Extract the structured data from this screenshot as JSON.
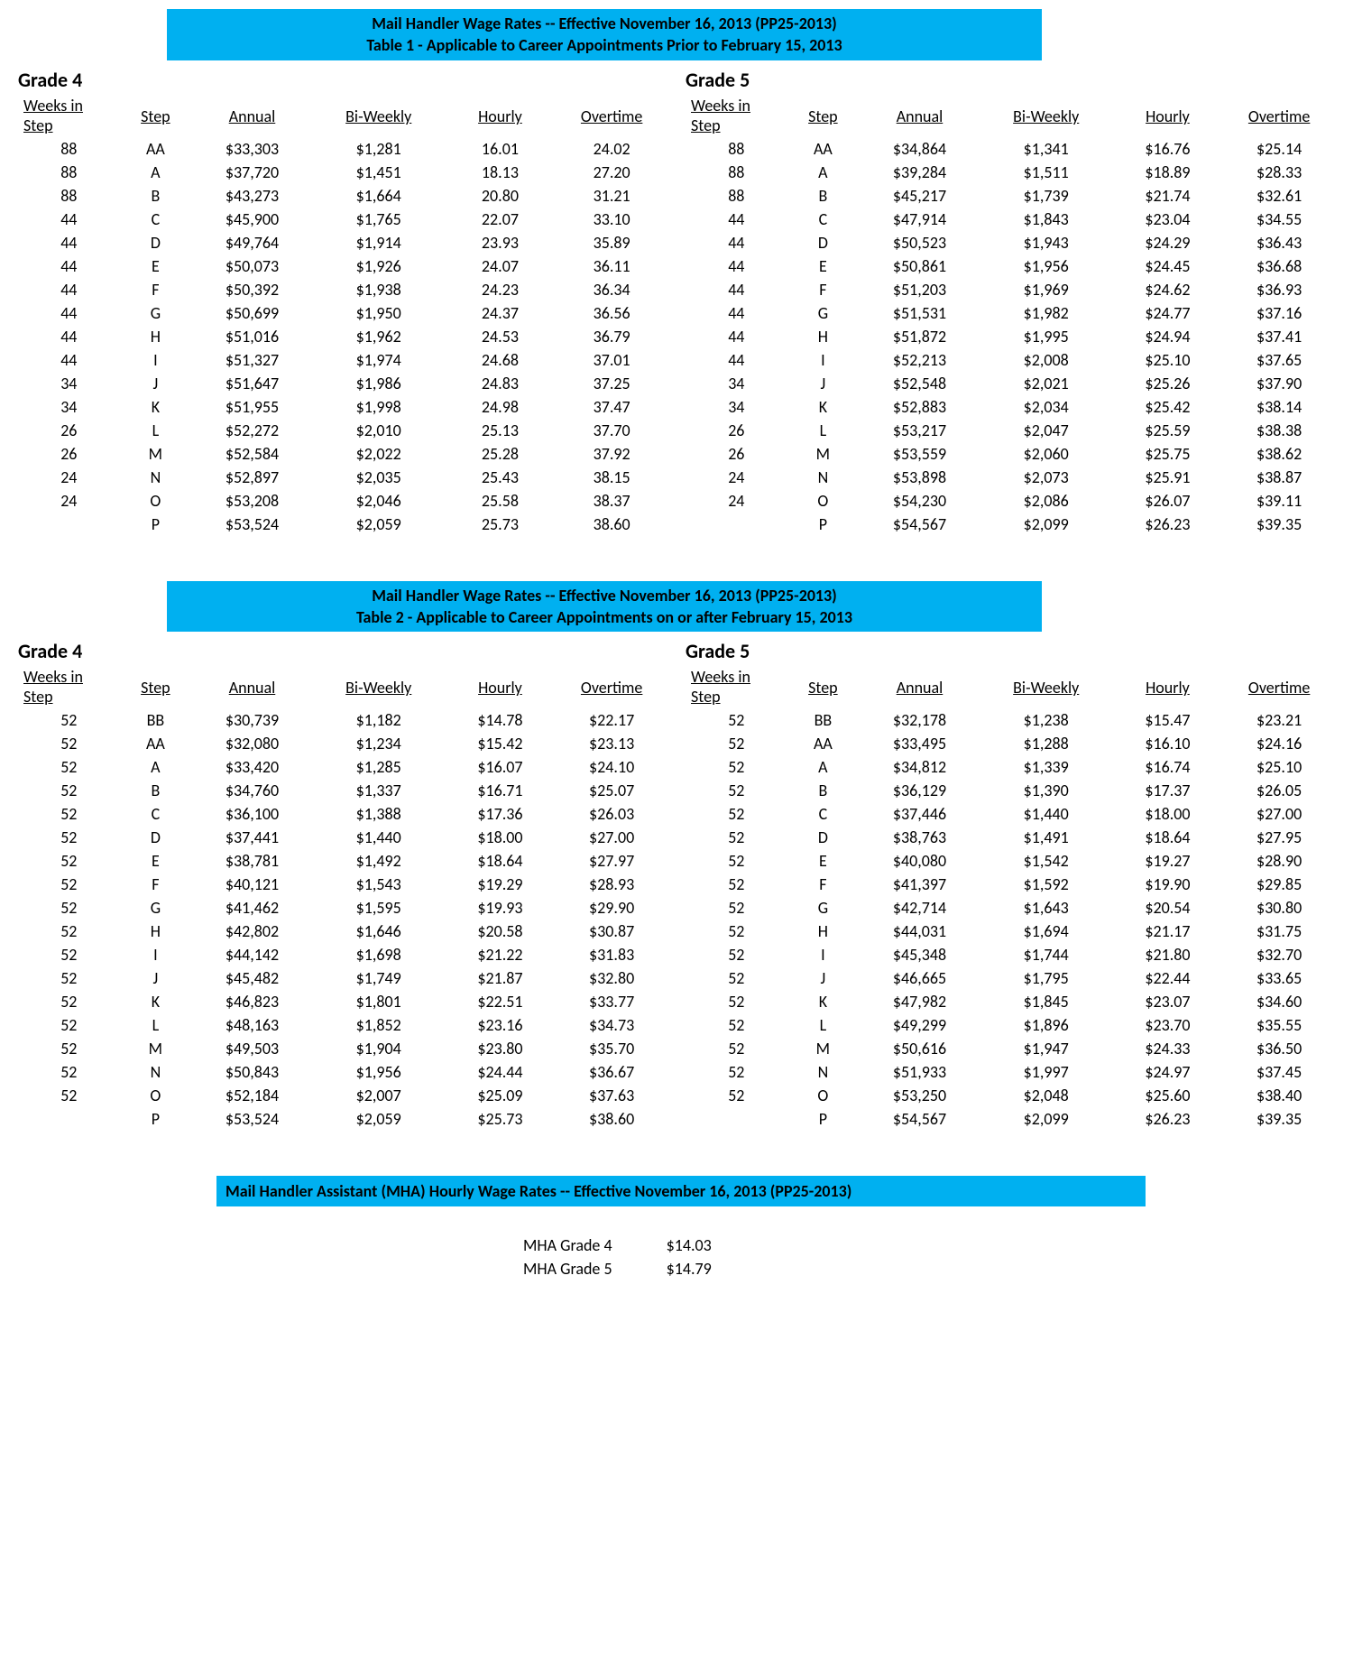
{
  "colors": {
    "banner_bg": "#00b0f0",
    "text": "#000000",
    "page_bg": "#ffffff"
  },
  "columns": [
    "Weeks in Step",
    "Step",
    "Annual",
    "Bi-Weekly",
    "Hourly",
    "Overtime"
  ],
  "table1": {
    "title_line1": "Mail Handler Wage Rates -- Effective November 16, 2013 (PP25-2013)",
    "title_line2": "Table 1 - Applicable to Career Appointments Prior to February 15, 2013",
    "grade4": {
      "label": "Grade 4",
      "rows": [
        {
          "weeks": "88",
          "step": "AA",
          "annual": "$33,303",
          "bi": "$1,281",
          "hr": "16.01",
          "ot": "24.02"
        },
        {
          "weeks": "88",
          "step": "A",
          "annual": "$37,720",
          "bi": "$1,451",
          "hr": "18.13",
          "ot": "27.20"
        },
        {
          "weeks": "88",
          "step": "B",
          "annual": "$43,273",
          "bi": "$1,664",
          "hr": "20.80",
          "ot": "31.21"
        },
        {
          "weeks": "44",
          "step": "C",
          "annual": "$45,900",
          "bi": "$1,765",
          "hr": "22.07",
          "ot": "33.10"
        },
        {
          "weeks": "44",
          "step": "D",
          "annual": "$49,764",
          "bi": "$1,914",
          "hr": "23.93",
          "ot": "35.89"
        },
        {
          "weeks": "44",
          "step": "E",
          "annual": "$50,073",
          "bi": "$1,926",
          "hr": "24.07",
          "ot": "36.11"
        },
        {
          "weeks": "44",
          "step": "F",
          "annual": "$50,392",
          "bi": "$1,938",
          "hr": "24.23",
          "ot": "36.34"
        },
        {
          "weeks": "44",
          "step": "G",
          "annual": "$50,699",
          "bi": "$1,950",
          "hr": "24.37",
          "ot": "36.56"
        },
        {
          "weeks": "44",
          "step": "H",
          "annual": "$51,016",
          "bi": "$1,962",
          "hr": "24.53",
          "ot": "36.79"
        },
        {
          "weeks": "44",
          "step": "I",
          "annual": "$51,327",
          "bi": "$1,974",
          "hr": "24.68",
          "ot": "37.01"
        },
        {
          "weeks": "34",
          "step": "J",
          "annual": "$51,647",
          "bi": "$1,986",
          "hr": "24.83",
          "ot": "37.25"
        },
        {
          "weeks": "34",
          "step": "K",
          "annual": "$51,955",
          "bi": "$1,998",
          "hr": "24.98",
          "ot": "37.47"
        },
        {
          "weeks": "26",
          "step": "L",
          "annual": "$52,272",
          "bi": "$2,010",
          "hr": "25.13",
          "ot": "37.70"
        },
        {
          "weeks": "26",
          "step": "M",
          "annual": "$52,584",
          "bi": "$2,022",
          "hr": "25.28",
          "ot": "37.92"
        },
        {
          "weeks": "24",
          "step": "N",
          "annual": "$52,897",
          "bi": "$2,035",
          "hr": "25.43",
          "ot": "38.15"
        },
        {
          "weeks": "24",
          "step": "O",
          "annual": "$53,208",
          "bi": "$2,046",
          "hr": "25.58",
          "ot": "38.37"
        },
        {
          "weeks": "",
          "step": "P",
          "annual": "$53,524",
          "bi": "$2,059",
          "hr": "25.73",
          "ot": "38.60"
        }
      ]
    },
    "grade5": {
      "label": "Grade 5",
      "rows": [
        {
          "weeks": "88",
          "step": "AA",
          "annual": "$34,864",
          "bi": "$1,341",
          "hr": "$16.76",
          "ot": "$25.14"
        },
        {
          "weeks": "88",
          "step": "A",
          "annual": "$39,284",
          "bi": "$1,511",
          "hr": "$18.89",
          "ot": "$28.33"
        },
        {
          "weeks": "88",
          "step": "B",
          "annual": "$45,217",
          "bi": "$1,739",
          "hr": "$21.74",
          "ot": "$32.61"
        },
        {
          "weeks": "44",
          "step": "C",
          "annual": "$47,914",
          "bi": "$1,843",
          "hr": "$23.04",
          "ot": "$34.55"
        },
        {
          "weeks": "44",
          "step": "D",
          "annual": "$50,523",
          "bi": "$1,943",
          "hr": "$24.29",
          "ot": "$36.43"
        },
        {
          "weeks": "44",
          "step": "E",
          "annual": "$50,861",
          "bi": "$1,956",
          "hr": "$24.45",
          "ot": "$36.68"
        },
        {
          "weeks": "44",
          "step": "F",
          "annual": "$51,203",
          "bi": "$1,969",
          "hr": "$24.62",
          "ot": "$36.93"
        },
        {
          "weeks": "44",
          "step": "G",
          "annual": "$51,531",
          "bi": "$1,982",
          "hr": "$24.77",
          "ot": "$37.16"
        },
        {
          "weeks": "44",
          "step": "H",
          "annual": "$51,872",
          "bi": "$1,995",
          "hr": "$24.94",
          "ot": "$37.41"
        },
        {
          "weeks": "44",
          "step": "I",
          "annual": "$52,213",
          "bi": "$2,008",
          "hr": "$25.10",
          "ot": "$37.65"
        },
        {
          "weeks": "34",
          "step": "J",
          "annual": "$52,548",
          "bi": "$2,021",
          "hr": "$25.26",
          "ot": "$37.90"
        },
        {
          "weeks": "34",
          "step": "K",
          "annual": "$52,883",
          "bi": "$2,034",
          "hr": "$25.42",
          "ot": "$38.14"
        },
        {
          "weeks": "26",
          "step": "L",
          "annual": "$53,217",
          "bi": "$2,047",
          "hr": "$25.59",
          "ot": "$38.38"
        },
        {
          "weeks": "26",
          "step": "M",
          "annual": "$53,559",
          "bi": "$2,060",
          "hr": "$25.75",
          "ot": "$38.62"
        },
        {
          "weeks": "24",
          "step": "N",
          "annual": "$53,898",
          "bi": "$2,073",
          "hr": "$25.91",
          "ot": "$38.87"
        },
        {
          "weeks": "24",
          "step": "O",
          "annual": "$54,230",
          "bi": "$2,086",
          "hr": "$26.07",
          "ot": "$39.11"
        },
        {
          "weeks": "",
          "step": "P",
          "annual": "$54,567",
          "bi": "$2,099",
          "hr": "$26.23",
          "ot": "$39.35"
        }
      ]
    }
  },
  "table2": {
    "title_line1": "Mail Handler Wage Rates -- Effective November 16, 2013 (PP25-2013)",
    "title_line2": "Table 2 - Applicable to Career Appointments on or after February 15, 2013",
    "grade4": {
      "label": "Grade 4",
      "rows": [
        {
          "weeks": "52",
          "step": "BB",
          "annual": "$30,739",
          "bi": "$1,182",
          "hr": "$14.78",
          "ot": "$22.17"
        },
        {
          "weeks": "52",
          "step": "AA",
          "annual": "$32,080",
          "bi": "$1,234",
          "hr": "$15.42",
          "ot": "$23.13"
        },
        {
          "weeks": "52",
          "step": "A",
          "annual": "$33,420",
          "bi": "$1,285",
          "hr": "$16.07",
          "ot": "$24.10"
        },
        {
          "weeks": "52",
          "step": "B",
          "annual": "$34,760",
          "bi": "$1,337",
          "hr": "$16.71",
          "ot": "$25.07"
        },
        {
          "weeks": "52",
          "step": "C",
          "annual": "$36,100",
          "bi": "$1,388",
          "hr": "$17.36",
          "ot": "$26.03"
        },
        {
          "weeks": "52",
          "step": "D",
          "annual": "$37,441",
          "bi": "$1,440",
          "hr": "$18.00",
          "ot": "$27.00"
        },
        {
          "weeks": "52",
          "step": "E",
          "annual": "$38,781",
          "bi": "$1,492",
          "hr": "$18.64",
          "ot": "$27.97"
        },
        {
          "weeks": "52",
          "step": "F",
          "annual": "$40,121",
          "bi": "$1,543",
          "hr": "$19.29",
          "ot": "$28.93"
        },
        {
          "weeks": "52",
          "step": "G",
          "annual": "$41,462",
          "bi": "$1,595",
          "hr": "$19.93",
          "ot": "$29.90"
        },
        {
          "weeks": "52",
          "step": "H",
          "annual": "$42,802",
          "bi": "$1,646",
          "hr": "$20.58",
          "ot": "$30.87"
        },
        {
          "weeks": "52",
          "step": "I",
          "annual": "$44,142",
          "bi": "$1,698",
          "hr": "$21.22",
          "ot": "$31.83"
        },
        {
          "weeks": "52",
          "step": "J",
          "annual": "$45,482",
          "bi": "$1,749",
          "hr": "$21.87",
          "ot": "$32.80"
        },
        {
          "weeks": "52",
          "step": "K",
          "annual": "$46,823",
          "bi": "$1,801",
          "hr": "$22.51",
          "ot": "$33.77"
        },
        {
          "weeks": "52",
          "step": "L",
          "annual": "$48,163",
          "bi": "$1,852",
          "hr": "$23.16",
          "ot": "$34.73"
        },
        {
          "weeks": "52",
          "step": "M",
          "annual": "$49,503",
          "bi": "$1,904",
          "hr": "$23.80",
          "ot": "$35.70"
        },
        {
          "weeks": "52",
          "step": "N",
          "annual": "$50,843",
          "bi": "$1,956",
          "hr": "$24.44",
          "ot": "$36.67"
        },
        {
          "weeks": "52",
          "step": "O",
          "annual": "$52,184",
          "bi": "$2,007",
          "hr": "$25.09",
          "ot": "$37.63"
        },
        {
          "weeks": "",
          "step": "P",
          "annual": "$53,524",
          "bi": "$2,059",
          "hr": "$25.73",
          "ot": "$38.60"
        }
      ]
    },
    "grade5": {
      "label": "Grade 5",
      "rows": [
        {
          "weeks": "52",
          "step": "BB",
          "annual": "$32,178",
          "bi": "$1,238",
          "hr": "$15.47",
          "ot": "$23.21"
        },
        {
          "weeks": "52",
          "step": "AA",
          "annual": "$33,495",
          "bi": "$1,288",
          "hr": "$16.10",
          "ot": "$24.16"
        },
        {
          "weeks": "52",
          "step": "A",
          "annual": "$34,812",
          "bi": "$1,339",
          "hr": "$16.74",
          "ot": "$25.10"
        },
        {
          "weeks": "52",
          "step": "B",
          "annual": "$36,129",
          "bi": "$1,390",
          "hr": "$17.37",
          "ot": "$26.05"
        },
        {
          "weeks": "52",
          "step": "C",
          "annual": "$37,446",
          "bi": "$1,440",
          "hr": "$18.00",
          "ot": "$27.00"
        },
        {
          "weeks": "52",
          "step": "D",
          "annual": "$38,763",
          "bi": "$1,491",
          "hr": "$18.64",
          "ot": "$27.95"
        },
        {
          "weeks": "52",
          "step": "E",
          "annual": "$40,080",
          "bi": "$1,542",
          "hr": "$19.27",
          "ot": "$28.90"
        },
        {
          "weeks": "52",
          "step": "F",
          "annual": "$41,397",
          "bi": "$1,592",
          "hr": "$19.90",
          "ot": "$29.85"
        },
        {
          "weeks": "52",
          "step": "G",
          "annual": "$42,714",
          "bi": "$1,643",
          "hr": "$20.54",
          "ot": "$30.80"
        },
        {
          "weeks": "52",
          "step": "H",
          "annual": "$44,031",
          "bi": "$1,694",
          "hr": "$21.17",
          "ot": "$31.75"
        },
        {
          "weeks": "52",
          "step": "I",
          "annual": "$45,348",
          "bi": "$1,744",
          "hr": "$21.80",
          "ot": "$32.70"
        },
        {
          "weeks": "52",
          "step": "J",
          "annual": "$46,665",
          "bi": "$1,795",
          "hr": "$22.44",
          "ot": "$33.65"
        },
        {
          "weeks": "52",
          "step": "K",
          "annual": "$47,982",
          "bi": "$1,845",
          "hr": "$23.07",
          "ot": "$34.60"
        },
        {
          "weeks": "52",
          "step": "L",
          "annual": "$49,299",
          "bi": "$1,896",
          "hr": "$23.70",
          "ot": "$35.55"
        },
        {
          "weeks": "52",
          "step": "M",
          "annual": "$50,616",
          "bi": "$1,947",
          "hr": "$24.33",
          "ot": "$36.50"
        },
        {
          "weeks": "52",
          "step": "N",
          "annual": "$51,933",
          "bi": "$1,997",
          "hr": "$24.97",
          "ot": "$37.45"
        },
        {
          "weeks": "52",
          "step": "O",
          "annual": "$53,250",
          "bi": "$2,048",
          "hr": "$25.60",
          "ot": "$38.40"
        },
        {
          "weeks": "",
          "step": "P",
          "annual": "$54,567",
          "bi": "$2,099",
          "hr": "$26.23",
          "ot": "$39.35"
        }
      ]
    }
  },
  "mha": {
    "title": "Mail Handler Assistant (MHA) Hourly Wage Rates -- Effective November 16, 2013 (PP25-2013)",
    "rows": [
      {
        "label": "MHA Grade 4",
        "rate": "$14.03"
      },
      {
        "label": "MHA Grade 5",
        "rate": "$14.79"
      }
    ]
  }
}
